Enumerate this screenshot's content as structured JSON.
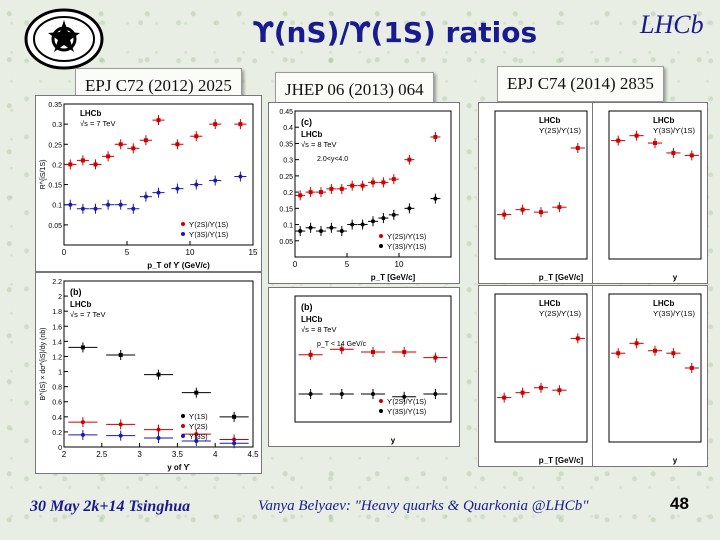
{
  "slide": {
    "title": "ϒ(nS)/ϒ(1S) ratios",
    "logo_text": "LHCb",
    "page_number": "48"
  },
  "references": {
    "left": "EPJ C72 (2012) 2025",
    "middle": "JHEP 06 (2013) 064",
    "right": "EPJ C74 (2014) 2835"
  },
  "footer": {
    "left": "30 May 2k+14 Tsinghua",
    "middle": "Vanya Belyaev: \"Heavy quarks & Quarkonia @LHCb\""
  },
  "colors": {
    "title": "#1a1a90",
    "series_red": "#cc0000",
    "series_blue": "#1a1ab0",
    "series_black": "#000000"
  },
  "chart_data": [
    {
      "type": "scatter",
      "panel": "EPJ C72 top",
      "legend_title": "LHCb",
      "legend_sub": "√s = 7 TeV",
      "ylabel": "R^{iS/1S}",
      "xlabel": "p_T of ϒ (GeV/c)",
      "xlim": [
        0,
        15
      ],
      "ylim": [
        0,
        0.35
      ],
      "yticks": [
        "0.05",
        "0.1",
        "0.15",
        "0.2",
        "0.25",
        "0.3",
        "0.35"
      ],
      "xticks": [
        "0",
        "5",
        "10",
        "15"
      ],
      "series": [
        {
          "name": "ϒ(2S)/ϒ(1S)",
          "color": "#cc0000",
          "x": [
            0.5,
            1.5,
            2.5,
            3.5,
            4.5,
            5.5,
            6.5,
            7.5,
            9.0,
            10.5,
            12.0,
            14.0
          ],
          "y": [
            0.2,
            0.21,
            0.2,
            0.22,
            0.25,
            0.24,
            0.26,
            0.31,
            0.25,
            0.27,
            0.3,
            0.3
          ]
        },
        {
          "name": "ϒ(3S)/ϒ(1S)",
          "color": "#1a1ab0",
          "x": [
            0.5,
            1.5,
            2.5,
            3.5,
            4.5,
            5.5,
            6.5,
            7.5,
            9.0,
            10.5,
            12.0,
            14.0
          ],
          "y": [
            0.1,
            0.09,
            0.09,
            0.1,
            0.1,
            0.09,
            0.12,
            0.13,
            0.14,
            0.15,
            0.16,
            0.17
          ]
        }
      ]
    },
    {
      "type": "scatter",
      "panel": "EPJ C72 bottom",
      "plot_label": "(b)",
      "legend_title": "LHCb",
      "legend_sub": "√s = 7 TeV",
      "ylabel": "B^{iS} × dσ^{iS}/dy (nb)",
      "xlabel": "y of ϒ",
      "xlim": [
        2,
        4.5
      ],
      "ylim": [
        0,
        2.2
      ],
      "xticks": [
        "2",
        "2.5",
        "3",
        "3.5",
        "4",
        "4.5"
      ],
      "yticks": [
        "0",
        "0.2",
        "0.4",
        "0.6",
        "0.8",
        "1",
        "1.2",
        "1.4",
        "1.6",
        "1.8",
        "2",
        "2.2"
      ],
      "series": [
        {
          "name": "ϒ(1S)",
          "color": "#000000",
          "x": [
            2.25,
            2.75,
            3.25,
            3.75,
            4.25
          ],
          "y": [
            1.32,
            1.22,
            0.96,
            0.72,
            0.4
          ]
        },
        {
          "name": "ϒ(2S)",
          "color": "#cc0000",
          "x": [
            2.25,
            2.75,
            3.25,
            3.75,
            4.25
          ],
          "y": [
            0.33,
            0.3,
            0.23,
            0.17,
            0.1
          ]
        },
        {
          "name": "ϒ(3S)",
          "color": "#1a1ab0",
          "x": [
            2.25,
            2.75,
            3.25,
            3.75,
            4.25
          ],
          "y": [
            0.16,
            0.15,
            0.12,
            0.08,
            0.05
          ]
        }
      ]
    },
    {
      "type": "scatter",
      "panel": "JHEP top",
      "plot_label": "(c)",
      "legend_title": "LHCb",
      "legend_sub": "√s = 8 TeV",
      "annotation": "2.0<y<4.0",
      "xlabel": "p_T [GeV/c]",
      "xlim": [
        0,
        15
      ],
      "ylim": [
        0,
        0.45
      ],
      "xticks": [
        "0",
        "5",
        "10"
      ],
      "yticks": [
        "0.05",
        "0.1",
        "0.15",
        "0.2",
        "0.25",
        "0.3",
        "0.35",
        "0.4",
        "0.45"
      ],
      "series": [
        {
          "name": "ϒ(2S)/ϒ(1S)",
          "color": "#cc0000",
          "x": [
            0.5,
            1.5,
            2.5,
            3.5,
            4.5,
            5.5,
            6.5,
            7.5,
            8.5,
            9.5,
            11.0,
            13.5
          ],
          "y": [
            0.19,
            0.2,
            0.2,
            0.21,
            0.21,
            0.22,
            0.22,
            0.23,
            0.23,
            0.24,
            0.3,
            0.37
          ]
        },
        {
          "name": "ϒ(3S)/ϒ(1S)",
          "color": "#000000",
          "x": [
            0.5,
            1.5,
            2.5,
            3.5,
            4.5,
            5.5,
            6.5,
            7.5,
            8.5,
            9.5,
            11.0,
            13.5
          ],
          "y": [
            0.08,
            0.09,
            0.08,
            0.09,
            0.08,
            0.1,
            0.1,
            0.11,
            0.12,
            0.13,
            0.15,
            0.18
          ]
        }
      ]
    },
    {
      "type": "scatter",
      "panel": "JHEP bottom",
      "plot_label": "(b)",
      "legend_title": "LHCb",
      "legend_sub": "√s = 8 TeV",
      "annotation": "p_T < 14 GeV/c",
      "xlabel": "y",
      "xlim": [
        2,
        4.5
      ],
      "ylim": [
        0,
        0.45
      ],
      "series": [
        {
          "name": "ϒ(2S)/ϒ(1S)",
          "color": "#cc0000",
          "x": [
            2.25,
            2.75,
            3.25,
            3.75,
            4.25
          ],
          "y": [
            0.24,
            0.26,
            0.25,
            0.25,
            0.23
          ]
        },
        {
          "name": "ϒ(3S)/ϒ(1S)",
          "color": "#000000",
          "x": [
            2.25,
            2.75,
            3.25,
            3.75,
            4.25
          ],
          "y": [
            0.1,
            0.1,
            0.1,
            0.09,
            0.1
          ]
        }
      ]
    },
    {
      "type": "scatter",
      "panel": "EPJ C74 top-left",
      "legend_title": "LHCb",
      "legend_sub": "ϒ(2S)/ϒ(1S)",
      "xlabel": "p_T [GeV/c]",
      "series": [
        {
          "name": "ϒ(2S)/ϒ(1S)",
          "color": "#cc0000",
          "x": [
            0.1,
            0.3,
            0.5,
            0.7,
            0.9
          ],
          "y": [
            0.18,
            0.2,
            0.19,
            0.21,
            0.45
          ]
        }
      ]
    },
    {
      "type": "scatter",
      "panel": "EPJ C74 top-right",
      "legend_title": "LHCb",
      "legend_sub": "ϒ(3S)/ϒ(1S)",
      "xlabel": "y",
      "series": [
        {
          "name": "ϒ(3S)/ϒ(1S)",
          "color": "#cc0000",
          "x": [
            0.1,
            0.3,
            0.5,
            0.7,
            0.9
          ],
          "y": [
            0.48,
            0.5,
            0.47,
            0.43,
            0.42
          ]
        }
      ]
    },
    {
      "type": "scatter",
      "panel": "EPJ C74 bottom-left",
      "legend_title": "LHCb",
      "legend_sub": "ϒ(2S)/ϒ(1S)",
      "xlabel": "p_T [GeV/c]",
      "series": [
        {
          "name": "ϒ(2S)/ϒ(1S)",
          "color": "#cc0000",
          "x": [
            0.1,
            0.3,
            0.5,
            0.7,
            0.9
          ],
          "y": [
            0.18,
            0.2,
            0.22,
            0.21,
            0.42
          ]
        }
      ]
    },
    {
      "type": "scatter",
      "panel": "EPJ C74 bottom-right",
      "legend_title": "LHCb",
      "legend_sub": "ϒ(3S)/ϒ(1S)",
      "xlabel": "y",
      "series": [
        {
          "name": "ϒ(3S)/ϒ(1S)",
          "color": "#cc0000",
          "x": [
            0.1,
            0.3,
            0.5,
            0.7,
            0.9
          ],
          "y": [
            0.36,
            0.4,
            0.37,
            0.36,
            0.3
          ]
        }
      ]
    }
  ]
}
